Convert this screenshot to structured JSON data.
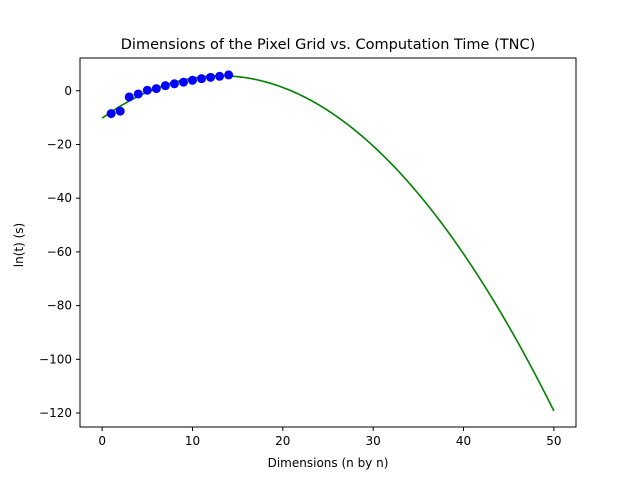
{
  "chart_data": {
    "type": "line",
    "title": "Dimensions of the Pixel Grid vs. Computation Time (TNC)",
    "xlabel": "Dimensions  (n by n)",
    "ylabel": "ln(t) (s)",
    "xlim": [
      -2.45,
      52.45
    ],
    "ylim": [
      -125.2,
      12.2
    ],
    "xticks": [
      0,
      10,
      20,
      30,
      40,
      50
    ],
    "yticks": [
      -120,
      -100,
      -80,
      -60,
      -40,
      -20,
      0
    ],
    "grid": false,
    "series": [
      {
        "kind": "scatter",
        "color": "#0000ff",
        "x": [
          1,
          2,
          3,
          4,
          5,
          6,
          7,
          8,
          9,
          10,
          11,
          12,
          13,
          14
        ],
        "y": [
          -8.5,
          -7.6,
          -2.3,
          -1.2,
          0.2,
          0.8,
          1.9,
          2.6,
          3.2,
          3.9,
          4.5,
          5.0,
          5.4,
          5.9
        ]
      },
      {
        "kind": "curve",
        "color": "#008000",
        "fit": "quadratic",
        "x_range": [
          0,
          50
        ],
        "y_points": {
          "0": -10.2,
          "14": 5.5,
          "50": -119.2
        }
      }
    ]
  }
}
